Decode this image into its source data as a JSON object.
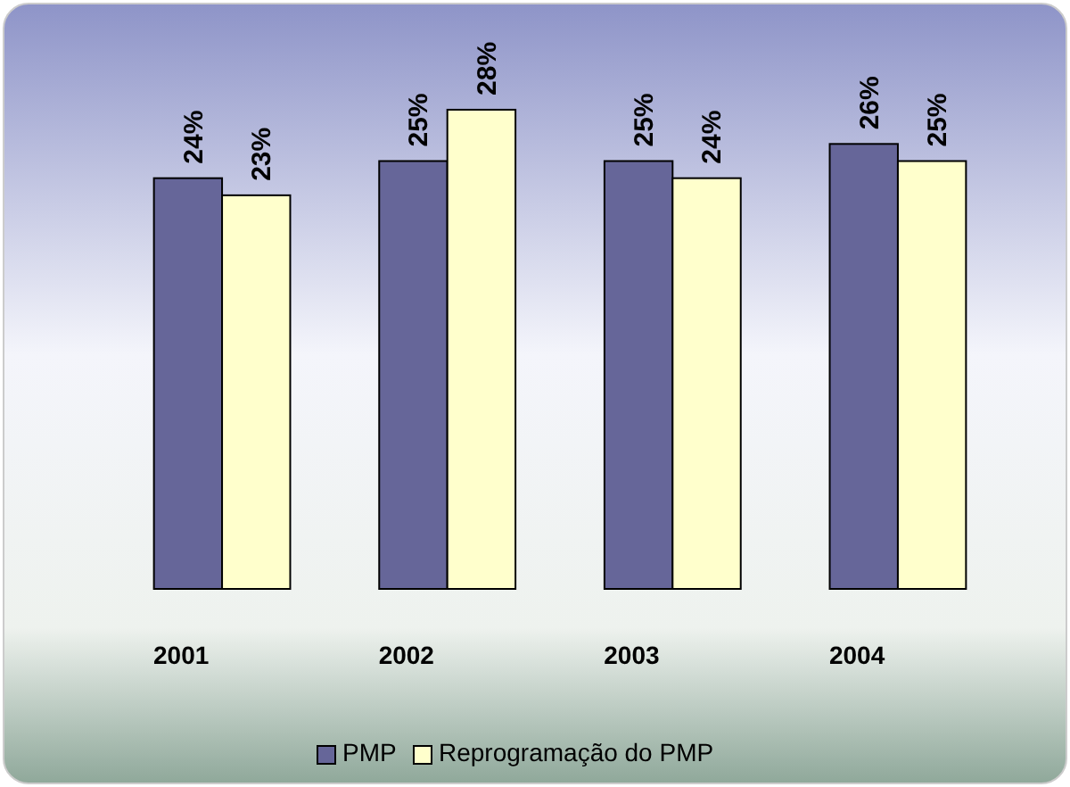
{
  "chart_data": {
    "type": "bar",
    "categories": [
      "2001",
      "2002",
      "2003",
      "2004"
    ],
    "series": [
      {
        "name": "PMP",
        "color": "#666699",
        "values": [
          24,
          25,
          25,
          26
        ],
        "value_labels": [
          "24%",
          "25%",
          "25%",
          "26%"
        ]
      },
      {
        "name": "Reprogramação do PMP",
        "color": "#ffffcc",
        "values": [
          23,
          28,
          24,
          25
        ],
        "value_labels": [
          "23%",
          "28%",
          "24%",
          "25%"
        ]
      }
    ],
    "legend": "bottom"
  }
}
